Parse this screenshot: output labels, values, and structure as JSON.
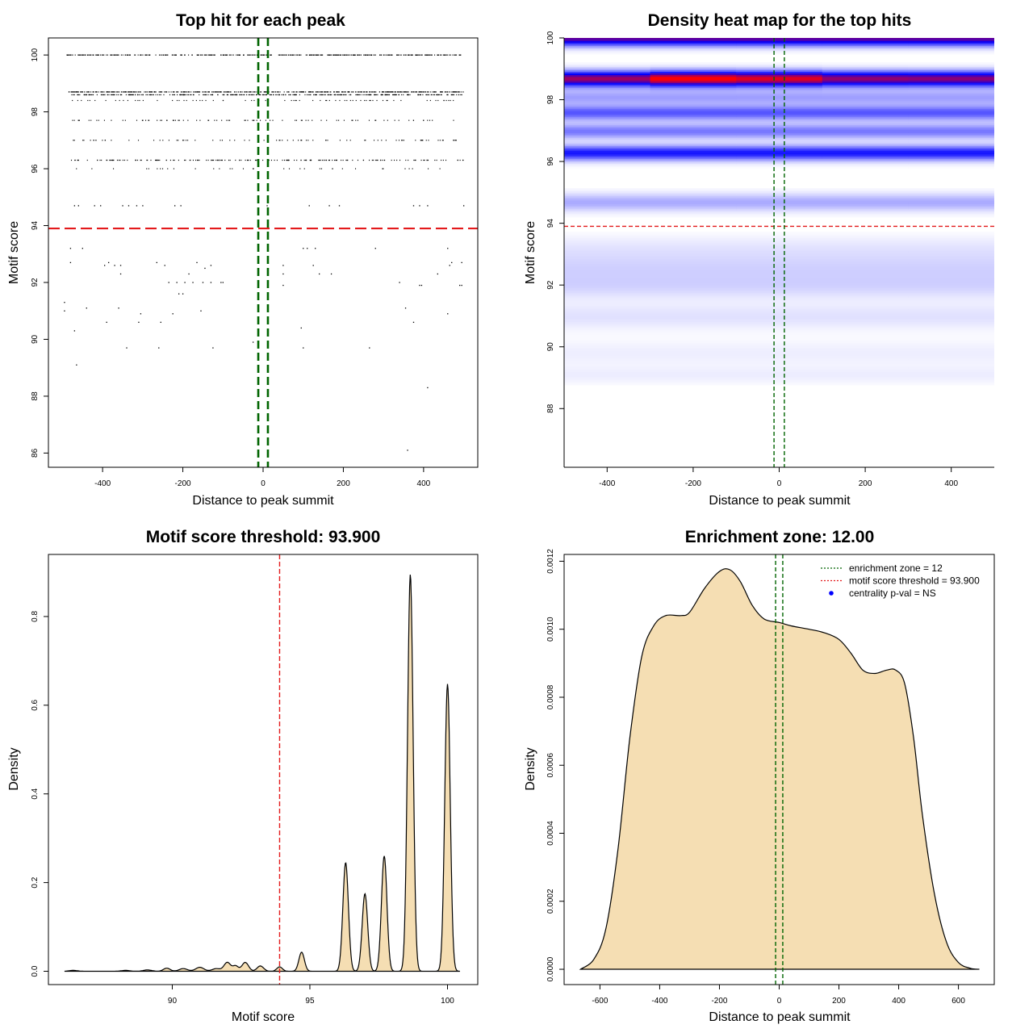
{
  "chart_data": [
    {
      "type": "scatter",
      "title": "Top hit for each peak",
      "xlabel": "Distance to peak summit",
      "ylabel": "Motif score",
      "xlim": [
        -535,
        535
      ],
      "ylim": [
        85.5,
        100.6
      ],
      "xticks": [
        -400,
        -200,
        0,
        200,
        400
      ],
      "xtick_labels": [
        "-400",
        "-200",
        "0",
        "200",
        "400"
      ],
      "yticks": [
        86,
        88,
        90,
        92,
        94,
        96,
        98,
        100
      ],
      "ytick_labels": [
        "86",
        "88",
        "90",
        "92",
        "94",
        "96",
        "98",
        "100"
      ],
      "threshold": 93.9,
      "threshold_color": "#e31a1c",
      "zone_lines": [
        -12,
        12
      ],
      "zone_color": "#006400",
      "point_color": "#000000",
      "dense_rows": [
        {
          "y": 100.0,
          "x_from": -490,
          "x_to": 495,
          "n": 480
        },
        {
          "y": 98.7,
          "x_from": -485,
          "x_to": 498,
          "n": 560
        },
        {
          "y": 98.6,
          "x_from": -480,
          "x_to": 495,
          "n": 380
        },
        {
          "y": 98.4,
          "x_from": -480,
          "x_to": 497,
          "n": 90
        },
        {
          "y": 97.7,
          "x_from": -485,
          "x_to": 480,
          "n": 110
        },
        {
          "y": 97.0,
          "x_from": -485,
          "x_to": 495,
          "n": 90
        },
        {
          "y": 96.3,
          "x_from": -480,
          "x_to": 498,
          "n": 200
        },
        {
          "y": 96.0,
          "x_from": -475,
          "x_to": 470,
          "n": 40
        }
      ],
      "points": [
        {
          "x": -470,
          "y": 94.7
        },
        {
          "x": -460,
          "y": 94.7
        },
        {
          "x": -420,
          "y": 94.7
        },
        {
          "x": -405,
          "y": 94.7
        },
        {
          "x": -350,
          "y": 94.7
        },
        {
          "x": -335,
          "y": 94.7
        },
        {
          "x": -315,
          "y": 94.7
        },
        {
          "x": -300,
          "y": 94.7
        },
        {
          "x": -220,
          "y": 94.7
        },
        {
          "x": -205,
          "y": 94.7
        },
        {
          "x": 115,
          "y": 94.7
        },
        {
          "x": 165,
          "y": 94.7
        },
        {
          "x": 190,
          "y": 94.7
        },
        {
          "x": 375,
          "y": 94.7
        },
        {
          "x": 390,
          "y": 94.7
        },
        {
          "x": 410,
          "y": 94.7
        },
        {
          "x": 500,
          "y": 94.7
        },
        {
          "x": 10,
          "y": 94.7
        },
        {
          "x": -480,
          "y": 93.2
        },
        {
          "x": -450,
          "y": 93.2
        },
        {
          "x": 100,
          "y": 93.2
        },
        {
          "x": 110,
          "y": 93.2
        },
        {
          "x": 130,
          "y": 93.2
        },
        {
          "x": 280,
          "y": 93.2
        },
        {
          "x": 460,
          "y": 93.2
        },
        {
          "x": -480,
          "y": 92.7
        },
        {
          "x": -395,
          "y": 92.6
        },
        {
          "x": -385,
          "y": 92.7
        },
        {
          "x": -370,
          "y": 92.6
        },
        {
          "x": -355,
          "y": 92.6
        },
        {
          "x": -265,
          "y": 92.7
        },
        {
          "x": -245,
          "y": 92.6
        },
        {
          "x": -165,
          "y": 92.7
        },
        {
          "x": -145,
          "y": 92.5
        },
        {
          "x": -130,
          "y": 92.6
        },
        {
          "x": 50,
          "y": 92.6
        },
        {
          "x": 125,
          "y": 92.6
        },
        {
          "x": 470,
          "y": 92.7
        },
        {
          "x": 495,
          "y": 92.7
        },
        {
          "x": 465,
          "y": 92.6
        },
        {
          "x": -355,
          "y": 92.3
        },
        {
          "x": -185,
          "y": 92.3
        },
        {
          "x": 50,
          "y": 92.3
        },
        {
          "x": 140,
          "y": 92.3
        },
        {
          "x": 170,
          "y": 92.3
        },
        {
          "x": 435,
          "y": 92.3
        },
        {
          "x": -235,
          "y": 92.0
        },
        {
          "x": -215,
          "y": 92.0
        },
        {
          "x": -195,
          "y": 92.0
        },
        {
          "x": -175,
          "y": 92.0
        },
        {
          "x": -150,
          "y": 92.0
        },
        {
          "x": -130,
          "y": 92.0
        },
        {
          "x": -105,
          "y": 92.0
        },
        {
          "x": -100,
          "y": 92.0
        },
        {
          "x": 340,
          "y": 92.0
        },
        {
          "x": 390,
          "y": 91.9
        },
        {
          "x": 395,
          "y": 91.9
        },
        {
          "x": 490,
          "y": 91.9
        },
        {
          "x": 495,
          "y": 91.9
        },
        {
          "x": 50,
          "y": 91.9
        },
        {
          "x": -210,
          "y": 91.6
        },
        {
          "x": -200,
          "y": 91.6
        },
        {
          "x": -495,
          "y": 91.3
        },
        {
          "x": -495,
          "y": 91.0
        },
        {
          "x": -440,
          "y": 91.1
        },
        {
          "x": -360,
          "y": 91.1
        },
        {
          "x": -155,
          "y": 91.0
        },
        {
          "x": -305,
          "y": 90.9
        },
        {
          "x": -225,
          "y": 90.9
        },
        {
          "x": 355,
          "y": 91.1
        },
        {
          "x": 460,
          "y": 90.9
        },
        {
          "x": -390,
          "y": 90.6
        },
        {
          "x": -310,
          "y": 90.6
        },
        {
          "x": -255,
          "y": 90.6
        },
        {
          "x": 375,
          "y": 90.6
        },
        {
          "x": -470,
          "y": 90.3
        },
        {
          "x": 95,
          "y": 90.4
        },
        {
          "x": -25,
          "y": 89.9
        },
        {
          "x": -340,
          "y": 89.7
        },
        {
          "x": -260,
          "y": 89.7
        },
        {
          "x": -125,
          "y": 89.7
        },
        {
          "x": 100,
          "y": 89.7
        },
        {
          "x": 265,
          "y": 89.7
        },
        {
          "x": -465,
          "y": 89.1
        },
        {
          "x": 410,
          "y": 88.3
        },
        {
          "x": 360,
          "y": 86.1
        }
      ]
    },
    {
      "type": "heatmap",
      "title": "Density heat map for the top hits",
      "xlabel": "Distance to peak summit",
      "ylabel": "Motif score",
      "xlim": [
        -500,
        500
      ],
      "ylim": [
        86.1,
        100.0
      ],
      "xticks": [
        -400,
        -200,
        0,
        200,
        400
      ],
      "xtick_labels": [
        "-400",
        "-200",
        "0",
        "200",
        "400"
      ],
      "yticks": [
        88,
        90,
        92,
        94,
        96,
        98,
        100
      ],
      "ytick_labels": [
        "88",
        "90",
        "92",
        "94",
        "96",
        "98",
        "100"
      ],
      "threshold": 93.9,
      "threshold_color": "#e31a1c",
      "zone_lines": [
        -12,
        12
      ],
      "zone_color": "#006400",
      "colors": {
        "low": "#ffffff",
        "mid": "#0000ff",
        "high": "#ff0000"
      },
      "bands": [
        {
          "y": 100.0,
          "sd": 0.17,
          "intensity": 0.75
        },
        {
          "y": 98.7,
          "sd": 0.18,
          "intensity": 1.0
        },
        {
          "y": 98.1,
          "sd": 0.17,
          "intensity": 0.22
        },
        {
          "y": 97.6,
          "sd": 0.17,
          "intensity": 0.4
        },
        {
          "y": 97.0,
          "sd": 0.17,
          "intensity": 0.32
        },
        {
          "y": 96.3,
          "sd": 0.17,
          "intensity": 0.55
        },
        {
          "y": 94.7,
          "sd": 0.2,
          "intensity": 0.2
        },
        {
          "y": 93.2,
          "sd": 0.3,
          "intensity": 0.06
        },
        {
          "y": 92.6,
          "sd": 0.3,
          "intensity": 0.09
        },
        {
          "y": 92.0,
          "sd": 0.3,
          "intensity": 0.1
        },
        {
          "y": 91.0,
          "sd": 0.3,
          "intensity": 0.07
        },
        {
          "y": 89.8,
          "sd": 0.3,
          "intensity": 0.04
        },
        {
          "y": 89.1,
          "sd": 0.2,
          "intensity": 0.04
        }
      ]
    },
    {
      "type": "area",
      "title": "Motif score threshold: 93.900",
      "xlabel": "Motif score",
      "ylabel": "Density",
      "xlim": [
        85.5,
        101.1
      ],
      "ylim": [
        -0.03,
        0.94
      ],
      "xticks": [
        90,
        95,
        100
      ],
      "xtick_labels": [
        "90",
        "95",
        "100"
      ],
      "yticks": [
        0.0,
        0.2,
        0.4,
        0.6,
        0.8
      ],
      "ytick_labels": [
        "0.0",
        "0.2",
        "0.4",
        "0.6",
        "0.8"
      ],
      "threshold": 93.9,
      "threshold_color": "#e31a1c",
      "fill_color": "#f5deb3",
      "x_range": [
        86.1,
        100.45
      ],
      "peaks": [
        {
          "x": 86.4,
          "h": 0.002,
          "sd": 0.15
        },
        {
          "x": 88.3,
          "h": 0.002,
          "sd": 0.15
        },
        {
          "x": 89.1,
          "h": 0.003,
          "sd": 0.15
        },
        {
          "x": 89.8,
          "h": 0.007,
          "sd": 0.12
        },
        {
          "x": 90.4,
          "h": 0.006,
          "sd": 0.15
        },
        {
          "x": 91.0,
          "h": 0.009,
          "sd": 0.15
        },
        {
          "x": 91.6,
          "h": 0.006,
          "sd": 0.15
        },
        {
          "x": 92.0,
          "h": 0.02,
          "sd": 0.12
        },
        {
          "x": 92.3,
          "h": 0.012,
          "sd": 0.1
        },
        {
          "x": 92.65,
          "h": 0.02,
          "sd": 0.12
        },
        {
          "x": 93.2,
          "h": 0.012,
          "sd": 0.12
        },
        {
          "x": 93.9,
          "h": 0.01,
          "sd": 0.1
        },
        {
          "x": 94.7,
          "h": 0.043,
          "sd": 0.1
        },
        {
          "x": 96.3,
          "h": 0.245,
          "sd": 0.1
        },
        {
          "x": 97.0,
          "h": 0.175,
          "sd": 0.1
        },
        {
          "x": 97.7,
          "h": 0.26,
          "sd": 0.1
        },
        {
          "x": 98.65,
          "h": 0.895,
          "sd": 0.1
        },
        {
          "x": 100.0,
          "h": 0.648,
          "sd": 0.1
        }
      ]
    },
    {
      "type": "area",
      "title": "Enrichment zone: 12.00",
      "xlabel": "Distance to peak summit",
      "ylabel": "Density",
      "xlim": [
        -720,
        720
      ],
      "ylim": [
        -4.5e-05,
        0.00122
      ],
      "xticks": [
        -600,
        -400,
        -200,
        0,
        200,
        400,
        600
      ],
      "xtick_labels": [
        "-600",
        "-400",
        "-200",
        "0",
        "200",
        "400",
        "600"
      ],
      "yticks": [
        0.0,
        0.0002,
        0.0004,
        0.0006,
        0.0008,
        0.001,
        0.0012
      ],
      "ytick_labels": [
        "0.0000",
        "0.0002",
        "0.0004",
        "0.0006",
        "0.0008",
        "0.0010",
        "0.0012"
      ],
      "zone_lines": [
        -12,
        12
      ],
      "zone_color": "#006400",
      "fill_color": "#f5deb3",
      "curve": [
        {
          "x": -665,
          "y": 0.0
        },
        {
          "x": -620,
          "y": 3e-05
        },
        {
          "x": -580,
          "y": 0.00012
        },
        {
          "x": -540,
          "y": 0.00035
        },
        {
          "x": -500,
          "y": 0.00068
        },
        {
          "x": -460,
          "y": 0.00092
        },
        {
          "x": -420,
          "y": 0.00101
        },
        {
          "x": -380,
          "y": 0.00104
        },
        {
          "x": -330,
          "y": 0.00104
        },
        {
          "x": -300,
          "y": 0.00105
        },
        {
          "x": -250,
          "y": 0.00112
        },
        {
          "x": -200,
          "y": 0.00117
        },
        {
          "x": -165,
          "y": 0.001175
        },
        {
          "x": -130,
          "y": 0.00114
        },
        {
          "x": -90,
          "y": 0.00107
        },
        {
          "x": -50,
          "y": 0.00103
        },
        {
          "x": 0,
          "y": 0.00102
        },
        {
          "x": 40,
          "y": 0.00101
        },
        {
          "x": 100,
          "y": 0.001
        },
        {
          "x": 150,
          "y": 0.00099
        },
        {
          "x": 200,
          "y": 0.00097
        },
        {
          "x": 240,
          "y": 0.00093
        },
        {
          "x": 280,
          "y": 0.00088
        },
        {
          "x": 320,
          "y": 0.00087
        },
        {
          "x": 360,
          "y": 0.00088
        },
        {
          "x": 390,
          "y": 0.00088
        },
        {
          "x": 420,
          "y": 0.00084
        },
        {
          "x": 450,
          "y": 0.00068
        },
        {
          "x": 480,
          "y": 0.00045
        },
        {
          "x": 520,
          "y": 0.00022
        },
        {
          "x": 560,
          "y": 8e-05
        },
        {
          "x": 600,
          "y": 2e-05
        },
        {
          "x": 640,
          "y": 3e-06
        },
        {
          "x": 670,
          "y": 0.0
        }
      ],
      "legend": {
        "placement": "top-right",
        "items": [
          {
            "label": "enrichment zone = 12",
            "color": "#006400",
            "kind": "line"
          },
          {
            "label": "motif score threshold = 93.900",
            "color": "#e31a1c",
            "kind": "line"
          },
          {
            "label": "centrality p-val = NS",
            "color": "#0000ff",
            "kind": "point"
          }
        ]
      }
    }
  ]
}
